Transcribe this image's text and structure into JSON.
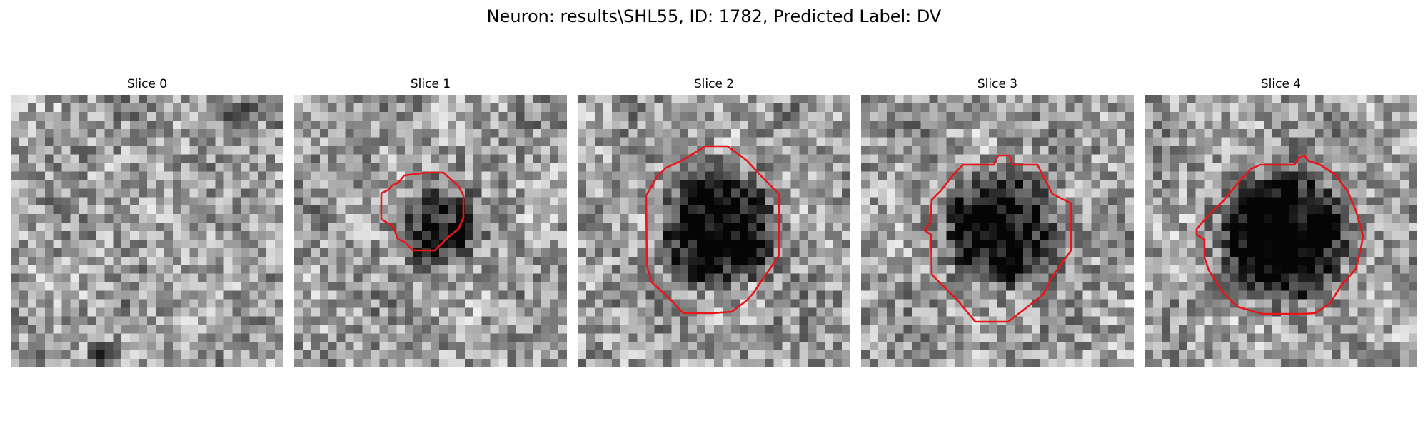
{
  "figure": {
    "title": "Neuron: results\\SHL55, ID: 1782, Predicted Label: DV"
  },
  "contour_color": "#e8161a",
  "colormap": "grayscale",
  "grid_resolution": 32,
  "slices": [
    {
      "title": "Slice 0",
      "has_contour": false,
      "blob_strength": 0.0,
      "blob_radius": 0
    },
    {
      "title": "Slice 1",
      "has_contour": true,
      "blob_strength": 0.45,
      "blob_radius": 5.5
    },
    {
      "title": "Slice 2",
      "has_contour": true,
      "blob_strength": 0.65,
      "blob_radius": 7.8
    },
    {
      "title": "Slice 3",
      "has_contour": true,
      "blob_strength": 0.6,
      "blob_radius": 7.8
    },
    {
      "title": "Slice 4",
      "has_contour": true,
      "blob_strength": 0.75,
      "blob_radius": 8.5
    }
  ]
}
